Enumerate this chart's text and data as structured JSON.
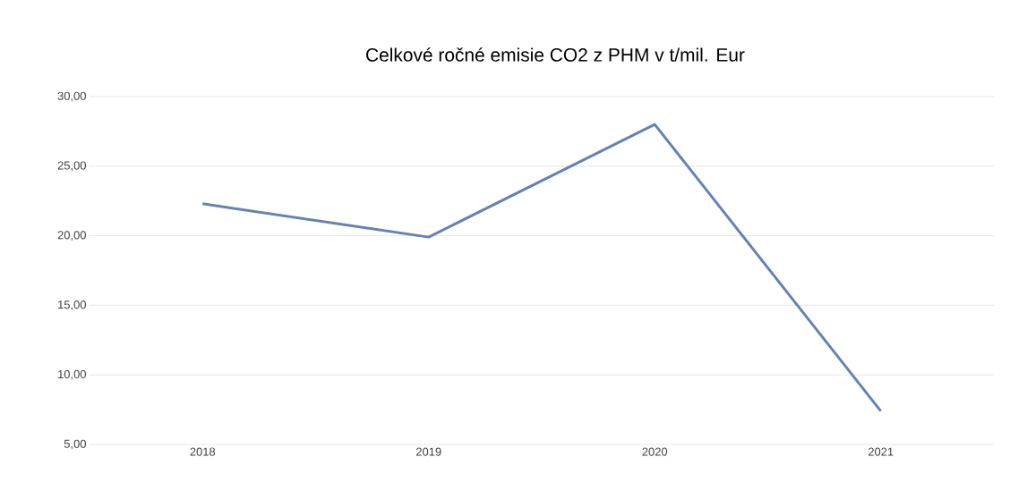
{
  "chart_data": {
    "type": "line",
    "title": "Celkové ročné emisie CO2 z PHM v t/mil. Eur",
    "categories": [
      "2018",
      "2019",
      "2020",
      "2021"
    ],
    "values": [
      22.3,
      19.9,
      28.0,
      7.4
    ],
    "color": "#6283b5",
    "ylim": [
      5,
      30
    ],
    "yticks": [
      {
        "value": 5,
        "label": "5,00"
      },
      {
        "value": 10,
        "label": "10,00"
      },
      {
        "value": 15,
        "label": "15,00"
      },
      {
        "value": 20,
        "label": "20,00"
      },
      {
        "value": 25,
        "label": "25,00"
      },
      {
        "value": 30,
        "label": "30,00"
      }
    ],
    "grid": "y"
  }
}
